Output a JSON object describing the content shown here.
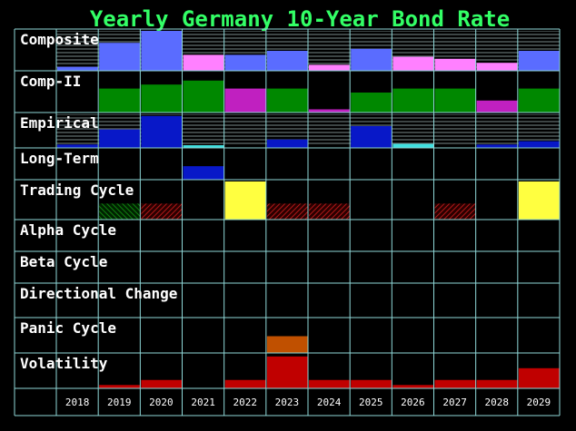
{
  "title": "Yearly Germany 10-Year Bond Rate",
  "colors": {
    "background": "#000000",
    "grid": "#8fd8d8",
    "title": "#33ff66",
    "label": "#ffffff",
    "year": "#ffffff"
  },
  "chart_data": {
    "type": "heatmap",
    "title": "Yearly Germany 10-Year Bond Rate",
    "years": [
      "2018",
      "2019",
      "2020",
      "2021",
      "2022",
      "2023",
      "2024",
      "2025",
      "2026",
      "2027",
      "2028",
      "2029"
    ],
    "rows": [
      {
        "name": "Composite",
        "baseline": "bottom",
        "hatched_background": true,
        "cells": [
          {
            "color": "#5a6cff",
            "level": 0.1
          },
          {
            "color": "#5a6cff",
            "level": 0.7
          },
          {
            "color": "#5a6cff",
            "level": 1.0
          },
          {
            "color": "#ff80ff",
            "level": 0.4
          },
          {
            "color": "#5a6cff",
            "level": 0.4
          },
          {
            "color": "#5a6cff",
            "level": 0.5
          },
          {
            "color": "#ff80ff",
            "level": 0.15
          },
          {
            "color": "#5a6cff",
            "level": 0.55
          },
          {
            "color": "#ff80ff",
            "level": 0.35
          },
          {
            "color": "#ff80ff",
            "level": 0.3
          },
          {
            "color": "#ff80ff",
            "level": 0.2
          },
          {
            "color": "#5a6cff",
            "level": 0.5
          }
        ]
      },
      {
        "name": "Comp-II",
        "baseline": "bottom",
        "hatched_background": false,
        "cells": [
          {
            "color": "#008800",
            "level": 0
          },
          {
            "color": "#008800",
            "level": 0.6
          },
          {
            "color": "#008800",
            "level": 0.7
          },
          {
            "color": "#008800",
            "level": 0.8
          },
          {
            "color": "#c020c0",
            "level": 0.6
          },
          {
            "color": "#008800",
            "level": 0.6
          },
          {
            "color": "#c020c0",
            "level": 0.08
          },
          {
            "color": "#008800",
            "level": 0.5
          },
          {
            "color": "#008800",
            "level": 0.6
          },
          {
            "color": "#008800",
            "level": 0.6
          },
          {
            "color": "#c020c0",
            "level": 0.3
          },
          {
            "color": "#008800",
            "level": 0.6
          }
        ]
      },
      {
        "name": "Empirical",
        "baseline": "bottom",
        "hatched_background": true,
        "cells": [
          {
            "color": "#0818c8",
            "level": 0.1
          },
          {
            "color": "#0818c8",
            "level": 0.55
          },
          {
            "color": "#0818c8",
            "level": 0.95
          },
          {
            "color": "#40e0e0",
            "level": 0.08
          },
          {
            "color": "#0818c8",
            "level": 0
          },
          {
            "color": "#0818c8",
            "level": 0.25
          },
          {
            "color": "#0818c8",
            "level": 0
          },
          {
            "color": "#0818c8",
            "level": 0.65
          },
          {
            "color": "#40e0e0",
            "level": 0.12
          },
          {
            "color": "#0818c8",
            "level": 0
          },
          {
            "color": "#0818c8",
            "level": 0.1
          },
          {
            "color": "#0818c8",
            "level": 0.2
          }
        ]
      },
      {
        "name": "Long-Term",
        "baseline": "bottom",
        "hatched_background": false,
        "cells": [
          {
            "color": "#0818c8",
            "level": 0
          },
          {
            "color": "#0818c8",
            "level": 0
          },
          {
            "color": "#0818c8",
            "level": 0
          },
          {
            "color": "#0818c8",
            "level": 0.45
          },
          {
            "color": "#0818c8",
            "level": 0
          },
          {
            "color": "#0818c8",
            "level": 0
          },
          {
            "color": "#0818c8",
            "level": 0
          },
          {
            "color": "#0818c8",
            "level": 0
          },
          {
            "color": "#0818c8",
            "level": 0
          },
          {
            "color": "#0818c8",
            "level": 0
          },
          {
            "color": "#0818c8",
            "level": 0
          },
          {
            "color": "#0818c8",
            "level": 0
          }
        ]
      },
      {
        "name": "Trading Cycle",
        "baseline": "bottom",
        "hatched_background": false,
        "cells": [
          {
            "color": "#000000",
            "level": 0,
            "style": "none"
          },
          {
            "color": "#108010",
            "level": 0.42,
            "style": "hatched"
          },
          {
            "color": "#b01818",
            "level": 0.42,
            "style": "hatched"
          },
          {
            "color": "#000000",
            "level": 0,
            "style": "none"
          },
          {
            "color": "#ffff40",
            "level": 1.0,
            "style": "solid"
          },
          {
            "color": "#b01818",
            "level": 0.42,
            "style": "hatched"
          },
          {
            "color": "#b01818",
            "level": 0.42,
            "style": "hatched"
          },
          {
            "color": "#000000",
            "level": 0,
            "style": "none"
          },
          {
            "color": "#000000",
            "level": 0,
            "style": "none"
          },
          {
            "color": "#b01818",
            "level": 0.42,
            "style": "hatched"
          },
          {
            "color": "#000000",
            "level": 0,
            "style": "none"
          },
          {
            "color": "#ffff40",
            "level": 1.0,
            "style": "solid"
          }
        ]
      },
      {
        "name": "Alpha Cycle",
        "baseline": "bottom",
        "hatched_background": false,
        "cells": []
      },
      {
        "name": "Beta Cycle",
        "baseline": "bottom",
        "hatched_background": false,
        "cells": []
      },
      {
        "name": "Directional Change",
        "baseline": "bottom",
        "hatched_background": false,
        "cells": []
      },
      {
        "name": "Panic Cycle",
        "baseline": "bottom",
        "hatched_background": false,
        "cells": [
          {
            "color": "#c05000",
            "level": 0
          },
          {
            "color": "#c05000",
            "level": 0
          },
          {
            "color": "#c05000",
            "level": 0
          },
          {
            "color": "#c05000",
            "level": 0
          },
          {
            "color": "#c05000",
            "level": 0
          },
          {
            "color": "#c05000",
            "level": 0.5
          },
          {
            "color": "#c05000",
            "level": 0
          },
          {
            "color": "#c05000",
            "level": 0
          },
          {
            "color": "#c05000",
            "level": 0
          },
          {
            "color": "#c05000",
            "level": 0
          },
          {
            "color": "#c05000",
            "level": 0
          },
          {
            "color": "#c05000",
            "level": 0
          }
        ]
      },
      {
        "name": "Volatility",
        "baseline": "bottom",
        "hatched_background": false,
        "cells": [
          {
            "color": "#c00000",
            "level": 0
          },
          {
            "color": "#c00000",
            "level": 0.1
          },
          {
            "color": "#c00000",
            "level": 0.25
          },
          {
            "color": "#c00000",
            "level": 0
          },
          {
            "color": "#c00000",
            "level": 0.25
          },
          {
            "color": "#c00000",
            "level": 0.95
          },
          {
            "color": "#c00000",
            "level": 0.25
          },
          {
            "color": "#c00000",
            "level": 0.25
          },
          {
            "color": "#c00000",
            "level": 0.1
          },
          {
            "color": "#c00000",
            "level": 0.25
          },
          {
            "color": "#c00000",
            "level": 0.25
          },
          {
            "color": "#c00000",
            "level": 0.6
          }
        ]
      }
    ]
  }
}
